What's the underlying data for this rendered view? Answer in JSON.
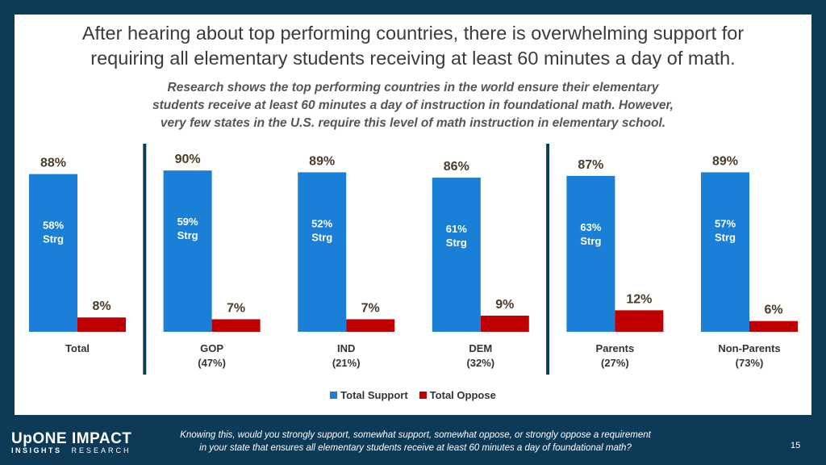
{
  "title": {
    "line1": "After hearing about top performing countries, there is overwhelming support for",
    "line2": "requiring all elementary students receiving at least 60 minutes a day of math."
  },
  "subtitle": {
    "line1": "Research shows the top performing countries in the world ensure their elementary",
    "line2": "students receive at least 60 minutes a day of instruction in foundational math. However,",
    "line3": "very few states in the U.S. require this level of math instruction in elementary school."
  },
  "colors": {
    "support": "#1a7fd6",
    "oppose": "#c00000",
    "divider": "#0d3a57",
    "background": "#0d3a57"
  },
  "chart_data": {
    "type": "bar",
    "categories": [
      {
        "label": "Total",
        "sublabel": ""
      },
      {
        "label": "GOP",
        "sublabel": "(47%)"
      },
      {
        "label": "IND",
        "sublabel": "(21%)"
      },
      {
        "label": "DEM",
        "sublabel": "(32%)"
      },
      {
        "label": "Parents",
        "sublabel": "(27%)"
      },
      {
        "label": "Non-Parents",
        "sublabel": "(73%)"
      }
    ],
    "series": [
      {
        "name": "Total Support",
        "values": [
          88,
          90,
          89,
          86,
          87,
          89
        ],
        "labels": [
          "88%",
          "90%",
          "89%",
          "86%",
          "87%",
          "89%"
        ],
        "inner_labels": [
          [
            "58%",
            "Strg"
          ],
          [
            "59%",
            "Strg"
          ],
          [
            "52%",
            "Strg"
          ],
          [
            "61%",
            "Strg"
          ],
          [
            "63%",
            "Strg"
          ],
          [
            "57%",
            "Strg"
          ]
        ]
      },
      {
        "name": "Total Oppose",
        "values": [
          8,
          7,
          7,
          9,
          12,
          6
        ],
        "labels": [
          "8%",
          "7%",
          "7%",
          "9%",
          "12%",
          "6%"
        ]
      }
    ],
    "ylim": [
      0,
      100
    ],
    "grid": false,
    "legend_position": "bottom",
    "group_dividers_after": [
      0,
      3
    ]
  },
  "legend": {
    "support_label": "Total Support",
    "oppose_label": "Total Oppose"
  },
  "footer": {
    "logo_left_top": "UpONE",
    "logo_left_bottom": "INSIGHTS",
    "logo_right_top": "IMPACT",
    "logo_right_bottom": "RESEARCH",
    "note_line1": "Knowing this, would you strongly support, somewhat support, somewhat oppose, or strongly oppose a requirement",
    "note_line2": "in your state that ensures all elementary students receive at least 60 minutes a day of foundational math?",
    "page_number": "15"
  }
}
